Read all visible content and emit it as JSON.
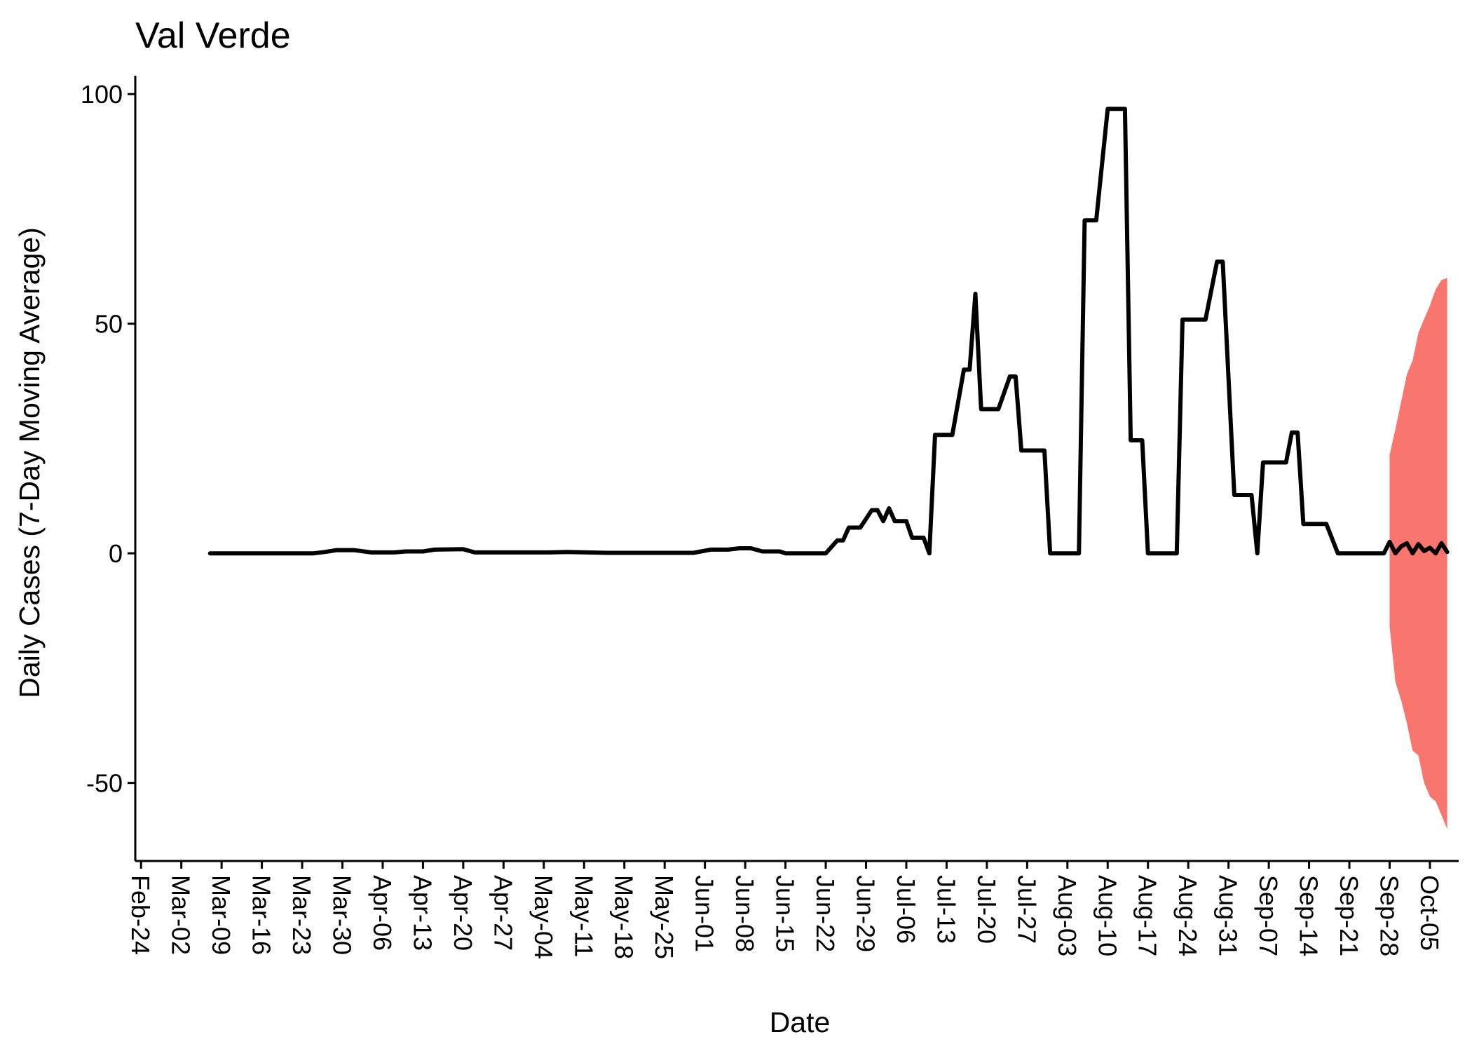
{
  "chart_data": {
    "type": "line",
    "title": "Val Verde",
    "xlabel": "Date",
    "ylabel": "Daily Cases (7-Day Moving Average)",
    "ylim": [
      -67,
      104
    ],
    "xlim": [
      "2020-02-23",
      "2020-10-10"
    ],
    "yticks": [
      -50,
      0,
      50,
      100
    ],
    "xticks": [
      "Feb-24",
      "Mar-02",
      "Mar-09",
      "Mar-16",
      "Mar-23",
      "Mar-30",
      "Apr-06",
      "Apr-13",
      "Apr-20",
      "Apr-27",
      "May-04",
      "May-11",
      "May-18",
      "May-25",
      "Jun-01",
      "Jun-08",
      "Jun-15",
      "Jun-22",
      "Jun-29",
      "Jul-06",
      "Jul-13",
      "Jul-20",
      "Jul-27",
      "Aug-03",
      "Aug-10",
      "Aug-17",
      "Aug-24",
      "Aug-31",
      "Sep-07",
      "Sep-14",
      "Sep-21",
      "Sep-28",
      "Oct-05"
    ],
    "xtick_dates": [
      "2020-02-24",
      "2020-03-02",
      "2020-03-09",
      "2020-03-16",
      "2020-03-23",
      "2020-03-30",
      "2020-04-06",
      "2020-04-13",
      "2020-04-20",
      "2020-04-27",
      "2020-05-04",
      "2020-05-11",
      "2020-05-18",
      "2020-05-25",
      "2020-06-01",
      "2020-06-08",
      "2020-06-15",
      "2020-06-22",
      "2020-06-29",
      "2020-07-06",
      "2020-07-13",
      "2020-07-20",
      "2020-07-27",
      "2020-08-03",
      "2020-08-10",
      "2020-08-17",
      "2020-08-24",
      "2020-08-31",
      "2020-09-07",
      "2020-09-14",
      "2020-09-21",
      "2020-09-28",
      "2020-10-05"
    ],
    "grid": false,
    "legend": "none",
    "series": [
      {
        "kind": "line",
        "color": "#000000",
        "points": [
          [
            "2020-03-07",
            0
          ],
          [
            "2020-03-25",
            0
          ],
          [
            "2020-03-27",
            0.3
          ],
          [
            "2020-03-29",
            0.7
          ],
          [
            "2020-04-01",
            0.7
          ],
          [
            "2020-04-04",
            0.2
          ],
          [
            "2020-04-08",
            0.2
          ],
          [
            "2020-04-10",
            0.4
          ],
          [
            "2020-04-13",
            0.4
          ],
          [
            "2020-04-15",
            0.8
          ],
          [
            "2020-04-20",
            0.9
          ],
          [
            "2020-04-22",
            0.2
          ],
          [
            "2020-05-05",
            0.2
          ],
          [
            "2020-05-08",
            0.3
          ],
          [
            "2020-05-15",
            0.1
          ],
          [
            "2020-05-30",
            0.1
          ],
          [
            "2020-06-02",
            0.8
          ],
          [
            "2020-06-05",
            0.8
          ],
          [
            "2020-06-07",
            1.1
          ],
          [
            "2020-06-09",
            1.1
          ],
          [
            "2020-06-11",
            0.4
          ],
          [
            "2020-06-14",
            0.4
          ],
          [
            "2020-06-15",
            0
          ],
          [
            "2020-06-22",
            0
          ],
          [
            "2020-06-24",
            2.8
          ],
          [
            "2020-06-25",
            2.8
          ],
          [
            "2020-06-26",
            5.6
          ],
          [
            "2020-06-28",
            5.6
          ],
          [
            "2020-06-30",
            9.4
          ],
          [
            "2020-07-01",
            9.4
          ],
          [
            "2020-07-02",
            7
          ],
          [
            "2020-07-03",
            9.8
          ],
          [
            "2020-07-04",
            7
          ],
          [
            "2020-07-06",
            7
          ],
          [
            "2020-07-07",
            3.4
          ],
          [
            "2020-07-09",
            3.4
          ],
          [
            "2020-07-10",
            0
          ],
          [
            "2020-07-11",
            25.8
          ],
          [
            "2020-07-14",
            25.8
          ],
          [
            "2020-07-16",
            40
          ],
          [
            "2020-07-17",
            40
          ],
          [
            "2020-07-18",
            56.5
          ],
          [
            "2020-07-19",
            31.4
          ],
          [
            "2020-07-22",
            31.4
          ],
          [
            "2020-07-24",
            38.5
          ],
          [
            "2020-07-25",
            38.5
          ],
          [
            "2020-07-26",
            22.4
          ],
          [
            "2020-07-30",
            22.4
          ],
          [
            "2020-07-31",
            0
          ],
          [
            "2020-08-05",
            0
          ],
          [
            "2020-08-06",
            72.5
          ],
          [
            "2020-08-08",
            72.5
          ],
          [
            "2020-08-10",
            96.8
          ],
          [
            "2020-08-13",
            96.8
          ],
          [
            "2020-08-14",
            24.6
          ],
          [
            "2020-08-16",
            24.6
          ],
          [
            "2020-08-17",
            0
          ],
          [
            "2020-08-22",
            0
          ],
          [
            "2020-08-23",
            50.9
          ],
          [
            "2020-08-27",
            50.9
          ],
          [
            "2020-08-29",
            63.5
          ],
          [
            "2020-08-30",
            63.5
          ],
          [
            "2020-09-01",
            12.7
          ],
          [
            "2020-09-04",
            12.7
          ],
          [
            "2020-09-05",
            0
          ],
          [
            "2020-09-06",
            19.8
          ],
          [
            "2020-09-10",
            19.8
          ],
          [
            "2020-09-11",
            26.3
          ],
          [
            "2020-09-12",
            26.3
          ],
          [
            "2020-09-13",
            6.4
          ],
          [
            "2020-09-17",
            6.4
          ],
          [
            "2020-09-19",
            0
          ],
          [
            "2020-09-27",
            0
          ],
          [
            "2020-09-28",
            2.5
          ],
          [
            "2020-09-29",
            0
          ],
          [
            "2020-09-30",
            1.5
          ],
          [
            "2020-10-01",
            2.2
          ],
          [
            "2020-10-02",
            0
          ],
          [
            "2020-10-03",
            2
          ],
          [
            "2020-10-04",
            0.5
          ],
          [
            "2020-10-05",
            1.2
          ],
          [
            "2020-10-06",
            0
          ],
          [
            "2020-10-07",
            2.2
          ],
          [
            "2020-10-08",
            0.3
          ]
        ]
      },
      {
        "kind": "ribbon",
        "color": "#F8766D",
        "points": [
          [
            "2020-09-28",
            -16,
            21.5
          ],
          [
            "2020-09-29",
            -28,
            27
          ],
          [
            "2020-09-30",
            -32,
            33
          ],
          [
            "2020-10-01",
            -37,
            39
          ],
          [
            "2020-10-02",
            -43,
            42
          ],
          [
            "2020-10-03",
            -44,
            48
          ],
          [
            "2020-10-04",
            -50,
            51
          ],
          [
            "2020-10-05",
            -53,
            54
          ],
          [
            "2020-10-06",
            -54,
            57.5
          ],
          [
            "2020-10-07",
            -57,
            59.5
          ],
          [
            "2020-10-08",
            -60,
            60
          ]
        ]
      }
    ]
  }
}
